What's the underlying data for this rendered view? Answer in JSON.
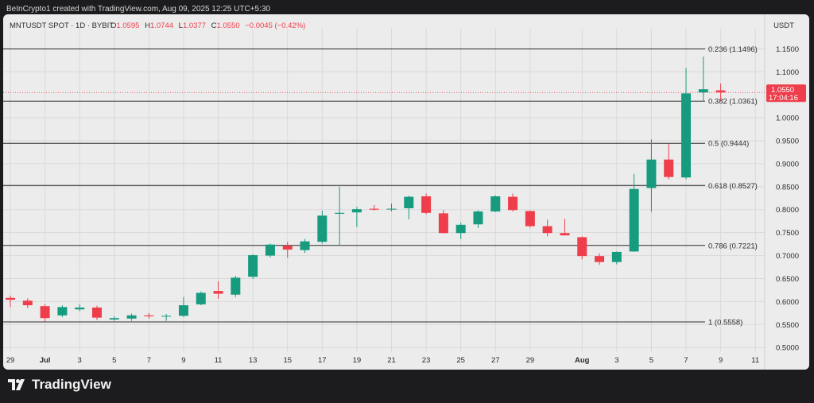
{
  "header": {
    "attribution": "BeInCrypto1 created with TradingView.com, Aug 09, 2025 12:25 UTC+5:30"
  },
  "legend": {
    "symbol": "MNTUSDT SPOT · 1D · BYBIT",
    "open_label": "O",
    "open": "1.0595",
    "high_label": "H",
    "high": "1.0744",
    "low_label": "L",
    "low": "1.0377",
    "close_label": "C",
    "close": "1.0550",
    "change": "−0.0045 (−0.42%)"
  },
  "footer": {
    "brand": "TradingView"
  },
  "colors": {
    "up": "#169b7f",
    "down": "#ee3e4b",
    "grid": "#d9d9d9",
    "fib_line": "#2b2b2b",
    "text": "#2b2b2b",
    "panel": "#ececec"
  },
  "chart_data": {
    "type": "candlestick",
    "currency": "USDT",
    "y_axis": {
      "ticks": [
        0.5,
        0.55,
        0.6,
        0.65,
        0.7,
        0.75,
        0.8,
        0.85,
        0.9,
        0.95,
        1.0,
        1.1,
        1.15
      ],
      "tick_labels": [
        "0.5000",
        "0.5500",
        "0.6000",
        "0.6500",
        "0.7000",
        "0.7500",
        "0.8000",
        "0.8500",
        "0.9000",
        "0.9500",
        "1.0000",
        "1.1000",
        "1.1500"
      ],
      "range": [
        0.49,
        1.18
      ]
    },
    "x_axis": {
      "ticks": [
        {
          "label": "29",
          "x": "Jun 29"
        },
        {
          "label": "Jul",
          "x": "Jul 1",
          "bold": true
        },
        {
          "label": "3",
          "x": "Jul 3"
        },
        {
          "label": "5",
          "x": "Jul 5"
        },
        {
          "label": "7",
          "x": "Jul 7"
        },
        {
          "label": "9",
          "x": "Jul 9"
        },
        {
          "label": "11",
          "x": "Jul 11"
        },
        {
          "label": "13",
          "x": "Jul 13"
        },
        {
          "label": "15",
          "x": "Jul 15"
        },
        {
          "label": "17",
          "x": "Jul 17"
        },
        {
          "label": "19",
          "x": "Jul 19"
        },
        {
          "label": "21",
          "x": "Jul 21"
        },
        {
          "label": "23",
          "x": "Jul 23"
        },
        {
          "label": "25",
          "x": "Jul 25"
        },
        {
          "label": "27",
          "x": "Jul 27"
        },
        {
          "label": "29",
          "x": "Jul 29"
        },
        {
          "label": "Aug",
          "x": "Aug 1",
          "bold": true
        },
        {
          "label": "3",
          "x": "Aug 3"
        },
        {
          "label": "5",
          "x": "Aug 5"
        },
        {
          "label": "7",
          "x": "Aug 7"
        },
        {
          "label": "9",
          "x": "Aug 9"
        },
        {
          "label": "11",
          "x": "Aug 11"
        }
      ],
      "range": [
        "Jun 29",
        "Aug 12"
      ]
    },
    "fib_levels": [
      {
        "label": "0.236 (1.1496)",
        "value": 1.1496
      },
      {
        "label": "0.382 (1.0361)",
        "value": 1.0361
      },
      {
        "label": "0.5 (0.9444)",
        "value": 0.9444
      },
      {
        "label": "0.618 (0.8527)",
        "value": 0.8527
      },
      {
        "label": "0.786 (0.7221)",
        "value": 0.7221
      },
      {
        "label": "1 (0.5558)",
        "value": 0.5558
      }
    ],
    "current_price": {
      "value": 1.055,
      "label": "1.0550",
      "countdown": "17:04:16"
    },
    "candles": [
      {
        "date": "Jun 29",
        "o": 0.608,
        "h": 0.613,
        "l": 0.588,
        "c": 0.604
      },
      {
        "date": "Jun 30",
        "o": 0.602,
        "h": 0.607,
        "l": 0.586,
        "c": 0.592
      },
      {
        "date": "Jul 1",
        "o": 0.59,
        "h": 0.595,
        "l": 0.556,
        "c": 0.564
      },
      {
        "date": "Jul 2",
        "o": 0.57,
        "h": 0.592,
        "l": 0.566,
        "c": 0.588
      },
      {
        "date": "Jul 3",
        "o": 0.583,
        "h": 0.594,
        "l": 0.579,
        "c": 0.587
      },
      {
        "date": "Jul 4",
        "o": 0.587,
        "h": 0.591,
        "l": 0.56,
        "c": 0.565
      },
      {
        "date": "Jul 5",
        "o": 0.561,
        "h": 0.568,
        "l": 0.558,
        "c": 0.564
      },
      {
        "date": "Jul 6",
        "o": 0.563,
        "h": 0.574,
        "l": 0.558,
        "c": 0.57
      },
      {
        "date": "Jul 7",
        "o": 0.57,
        "h": 0.575,
        "l": 0.563,
        "c": 0.568
      },
      {
        "date": "Jul 8",
        "o": 0.568,
        "h": 0.573,
        "l": 0.558,
        "c": 0.569
      },
      {
        "date": "Jul 9",
        "o": 0.569,
        "h": 0.61,
        "l": 0.566,
        "c": 0.592
      },
      {
        "date": "Jul 10",
        "o": 0.594,
        "h": 0.622,
        "l": 0.592,
        "c": 0.619
      },
      {
        "date": "Jul 11",
        "o": 0.623,
        "h": 0.644,
        "l": 0.606,
        "c": 0.617
      },
      {
        "date": "Jul 12",
        "o": 0.615,
        "h": 0.656,
        "l": 0.61,
        "c": 0.652
      },
      {
        "date": "Jul 13",
        "o": 0.654,
        "h": 0.703,
        "l": 0.649,
        "c": 0.701
      },
      {
        "date": "Jul 14",
        "o": 0.7,
        "h": 0.726,
        "l": 0.696,
        "c": 0.724
      },
      {
        "date": "Jul 15",
        "o": 0.722,
        "h": 0.73,
        "l": 0.695,
        "c": 0.713
      },
      {
        "date": "Jul 16",
        "o": 0.712,
        "h": 0.736,
        "l": 0.706,
        "c": 0.731
      },
      {
        "date": "Jul 17",
        "o": 0.73,
        "h": 0.798,
        "l": 0.726,
        "c": 0.787
      },
      {
        "date": "Jul 18",
        "o": 0.791,
        "h": 0.85,
        "l": 0.722,
        "c": 0.793
      },
      {
        "date": "Jul 19",
        "o": 0.794,
        "h": 0.806,
        "l": 0.762,
        "c": 0.801
      },
      {
        "date": "Jul 20",
        "o": 0.802,
        "h": 0.81,
        "l": 0.798,
        "c": 0.8
      },
      {
        "date": "Jul 21",
        "o": 0.801,
        "h": 0.813,
        "l": 0.796,
        "c": 0.802
      },
      {
        "date": "Jul 22",
        "o": 0.803,
        "h": 0.83,
        "l": 0.779,
        "c": 0.828
      },
      {
        "date": "Jul 23",
        "o": 0.829,
        "h": 0.835,
        "l": 0.79,
        "c": 0.793
      },
      {
        "date": "Jul 24",
        "o": 0.792,
        "h": 0.799,
        "l": 0.748,
        "c": 0.749
      },
      {
        "date": "Jul 25",
        "o": 0.749,
        "h": 0.772,
        "l": 0.736,
        "c": 0.767
      },
      {
        "date": "Jul 26",
        "o": 0.768,
        "h": 0.799,
        "l": 0.76,
        "c": 0.796
      },
      {
        "date": "Jul 27",
        "o": 0.796,
        "h": 0.831,
        "l": 0.795,
        "c": 0.829
      },
      {
        "date": "Jul 28",
        "o": 0.828,
        "h": 0.835,
        "l": 0.796,
        "c": 0.799
      },
      {
        "date": "Jul 29",
        "o": 0.797,
        "h": 0.798,
        "l": 0.761,
        "c": 0.764
      },
      {
        "date": "Jul 30",
        "o": 0.764,
        "h": 0.778,
        "l": 0.742,
        "c": 0.749
      },
      {
        "date": "Jul 31",
        "o": 0.749,
        "h": 0.78,
        "l": 0.744,
        "c": 0.744
      },
      {
        "date": "Aug 1",
        "o": 0.74,
        "h": 0.742,
        "l": 0.692,
        "c": 0.699
      },
      {
        "date": "Aug 2",
        "o": 0.699,
        "h": 0.705,
        "l": 0.68,
        "c": 0.686
      },
      {
        "date": "Aug 3",
        "o": 0.686,
        "h": 0.709,
        "l": 0.681,
        "c": 0.708
      },
      {
        "date": "Aug 4",
        "o": 0.709,
        "h": 0.878,
        "l": 0.708,
        "c": 0.845
      },
      {
        "date": "Aug 5",
        "o": 0.847,
        "h": 0.953,
        "l": 0.795,
        "c": 0.909
      },
      {
        "date": "Aug 6",
        "o": 0.909,
        "h": 0.943,
        "l": 0.866,
        "c": 0.871
      },
      {
        "date": "Aug 7",
        "o": 0.87,
        "h": 1.108,
        "l": 0.866,
        "c": 1.053
      },
      {
        "date": "Aug 8",
        "o": 1.055,
        "h": 1.133,
        "l": 1.036,
        "c": 1.062
      },
      {
        "date": "Aug 9",
        "o": 1.0595,
        "h": 1.0744,
        "l": 1.0377,
        "c": 1.055
      }
    ]
  }
}
